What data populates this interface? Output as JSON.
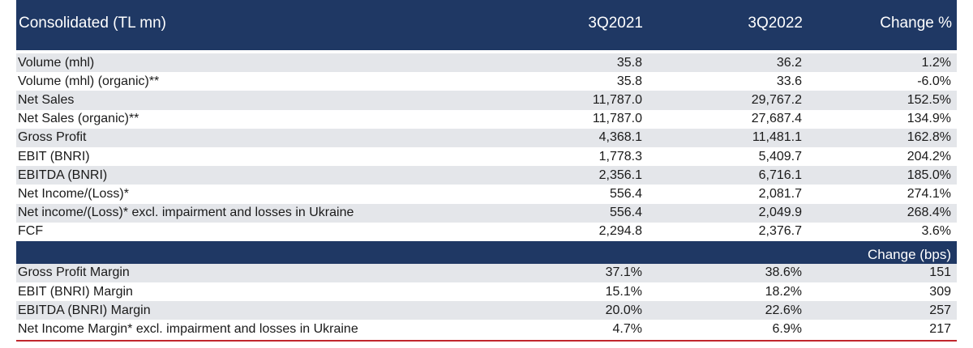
{
  "header": {
    "label": "Consolidated (TL mn)",
    "col1": "3Q2021",
    "col2": "3Q2022",
    "col3": "Change %"
  },
  "rows": [
    {
      "label": "Volume (mhl)",
      "v1": "35.8",
      "v2": "36.2",
      "v3": "1.2%"
    },
    {
      "label": "Volume (mhl) (organic)**",
      "v1": "35.8",
      "v2": "33.6",
      "v3": "-6.0%"
    },
    {
      "label": "Net Sales",
      "v1": "11,787.0",
      "v2": "29,767.2",
      "v3": "152.5%"
    },
    {
      "label": "Net Sales (organic)**",
      "v1": "11,787.0",
      "v2": "27,687.4",
      "v3": "134.9%"
    },
    {
      "label": "Gross Profit",
      "v1": "4,368.1",
      "v2": "11,481.1",
      "v3": "162.8%"
    },
    {
      "label": "EBIT (BNRI)",
      "v1": "1,778.3",
      "v2": "5,409.7",
      "v3": "204.2%"
    },
    {
      "label": "EBITDA (BNRI)",
      "v1": "2,356.1",
      "v2": "6,716.1",
      "v3": "185.0%"
    },
    {
      "label": "Net Income/(Loss)*",
      "v1": "556.4",
      "v2": "2,081.7",
      "v3": "274.1%"
    },
    {
      "label": "Net income/(Loss)* excl. impairment and losses in Ukraine",
      "v1": "556.4",
      "v2": "2,049.9",
      "v3": "268.4%"
    },
    {
      "label": "FCF",
      "v1": "2,294.8",
      "v2": "2,376.7",
      "v3": "3.6%"
    }
  ],
  "sub_header": {
    "col3": "Change (bps)"
  },
  "margin_rows": [
    {
      "label": "Gross Profit Margin",
      "v1": "37.1%",
      "v2": "38.6%",
      "v3": "151"
    },
    {
      "label": "EBIT (BNRI) Margin",
      "v1": "15.1%",
      "v2": "18.2%",
      "v3": "309"
    },
    {
      "label": "EBITDA (BNRI) Margin",
      "v1": "20.0%",
      "v2": "22.6%",
      "v3": "257"
    },
    {
      "label": "Net Income Margin* excl. impairment and losses in Ukraine",
      "v1": "4.7%",
      "v2": "6.9%",
      "v3": "217"
    }
  ],
  "colors": {
    "header_bg": "#1f3864",
    "stripe": "#e4e6ea",
    "rule": "#c0272d"
  }
}
